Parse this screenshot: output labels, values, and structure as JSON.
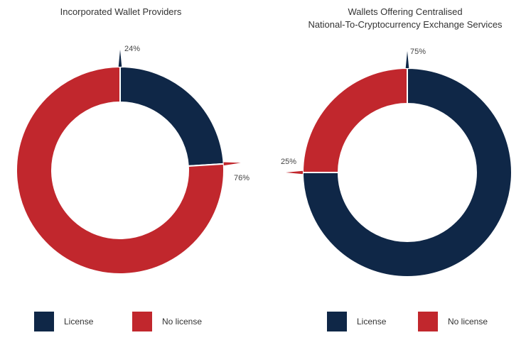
{
  "colors": {
    "license": "#0f2747",
    "no_license": "#c1272d"
  },
  "chart_data": [
    {
      "type": "pie",
      "title": "Incorporated Wallet Providers",
      "categories": [
        "License",
        "No license"
      ],
      "values": [
        24,
        76
      ],
      "labels": [
        "24%",
        "76%"
      ]
    },
    {
      "type": "pie",
      "title": "Wallets Offering Centralised\nNational-To-Cryptocurrency Exchange Services",
      "categories": [
        "License",
        "No license"
      ],
      "values": [
        75,
        25
      ],
      "labels": [
        "75%",
        "25%"
      ]
    }
  ],
  "legend": {
    "license": "License",
    "no_license": "No license"
  }
}
